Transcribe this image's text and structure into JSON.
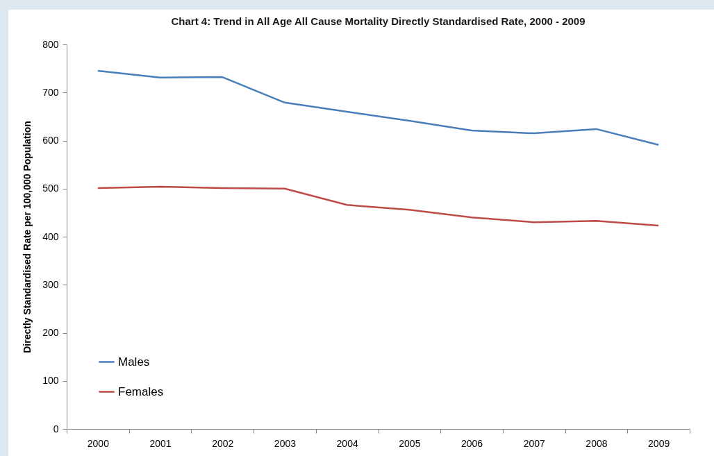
{
  "chart_data": {
    "type": "line",
    "title": "Chart 4: Trend in All Age All Cause Mortality Directly Standardised Rate, 2000 - 2009",
    "ylabel": "Directly Standardised Rate per 100,000 Population",
    "categories": [
      "2000",
      "2001",
      "2002",
      "2003",
      "2004",
      "2005",
      "2006",
      "2007",
      "2008",
      "2009"
    ],
    "series": [
      {
        "name": "Males",
        "color": "#4a7ebb",
        "values": [
          745,
          731,
          732,
          679,
          660,
          641,
          621,
          615,
          624,
          591
        ]
      },
      {
        "name": "Females",
        "color": "#be4b48",
        "values": [
          501,
          504,
          501,
          500,
          466,
          456,
          440,
          430,
          433,
          423
        ]
      }
    ],
    "ylim": [
      0,
      800
    ],
    "yticks": [
      0,
      100,
      200,
      300,
      400,
      500,
      600,
      700,
      800
    ],
    "grid": false,
    "legend": "bottom left",
    "marker": "none",
    "line_style": "solid"
  }
}
